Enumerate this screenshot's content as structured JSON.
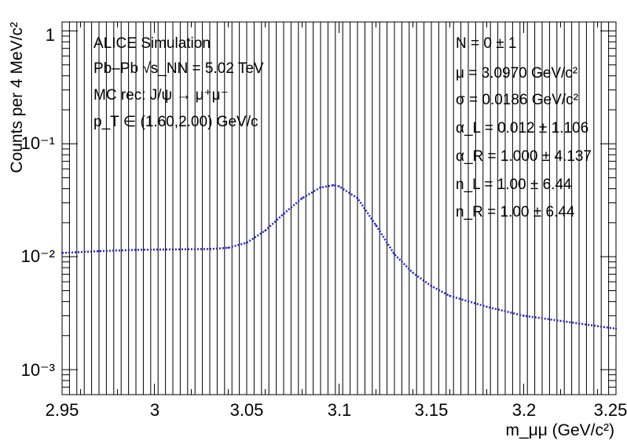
{
  "chart_data": {
    "type": "line",
    "xlabel": "m_μμ (GeV/c²)",
    "ylabel": "Counts per 4 MeV/c²",
    "xlim": [
      2.95,
      3.25
    ],
    "ylim": [
      0.0006,
      1.2
    ],
    "y_scale": "log",
    "x_tick_labels": [
      "2.95",
      "3",
      "3.05",
      "3.1",
      "3.15",
      "3.2",
      "3.25"
    ],
    "y_tick_labels": [
      "1",
      "10⁻¹",
      "10⁻²",
      "10⁻³"
    ],
    "grid": "vertical lines every 4 MeV/c² bin",
    "colors": {
      "series": "#2222cc",
      "axes": "#000000"
    },
    "info_left": [
      "ALICE Simulation",
      "Pb–Pb √s_NN = 5.02 TeV",
      "MC rec: J/ψ → μ⁺μ⁻",
      "p_T ∈ (1.60,2.00) GeV/c"
    ],
    "info_right": [
      "N = 0 ± 1",
      "μ = 3.0970 GeV/c²",
      "σ = 0.0186 GeV/c²",
      "α_L = 0.012 ± 1.106",
      "α_R = 1.000 ± 4.137",
      "n_L = 1.00 ± 6.44",
      "n_R = 1.00 ± 6.44"
    ],
    "series": [
      {
        "x": [
          2.95,
          2.97,
          2.99,
          3.01,
          3.03,
          3.04,
          3.05,
          3.06,
          3.07,
          3.08,
          3.09,
          3.097,
          3.1,
          3.11,
          3.12,
          3.13,
          3.14,
          3.15,
          3.16,
          3.18,
          3.2,
          3.22,
          3.25
        ],
        "y": [
          0.0108,
          0.0112,
          0.0115,
          0.0116,
          0.0117,
          0.012,
          0.0133,
          0.017,
          0.024,
          0.033,
          0.041,
          0.043,
          0.042,
          0.033,
          0.019,
          0.0105,
          0.0072,
          0.0055,
          0.0045,
          0.0036,
          0.003,
          0.0027,
          0.0023
        ]
      }
    ]
  }
}
